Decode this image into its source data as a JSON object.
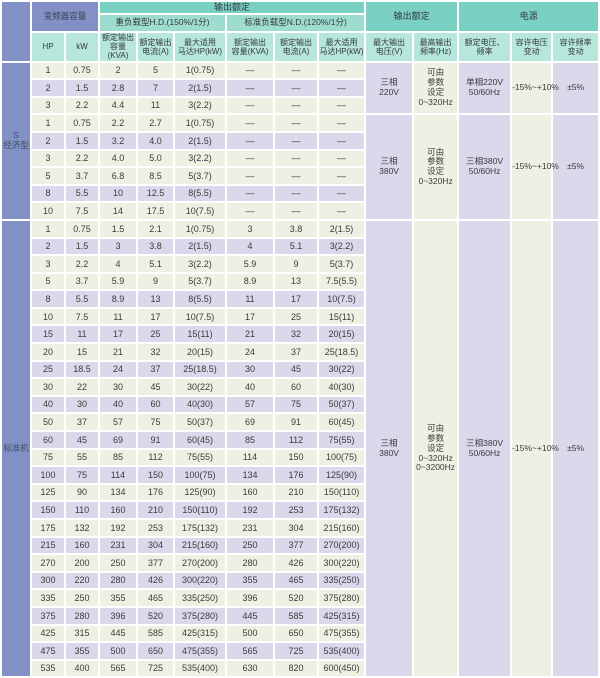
{
  "colors": {
    "header_teal": "#7ad0c2",
    "subheader_teal": "#9edcd0",
    "column_teal": "#b7e6dc",
    "blue": "#8290c6",
    "row_cream": "#f0efe3",
    "row_lavender": "#d9d9eb",
    "text": "#3b3b3b"
  },
  "table": {
    "header": {
      "capacity_group": "变频器容量",
      "output_rating_group": "输出额定",
      "hd_group": "重负载型H.D.(150%/1分)",
      "nd_group": "标准负载型N.D.(120%/1分)",
      "output_rating2_group": "输出额定",
      "power_group": "电源",
      "col_hp": "HP",
      "col_kw": "kW",
      "col_hd_kva": "额定输出\n容量(KVA)",
      "col_hd_a": "额定输出\n电流(A)",
      "col_hd_motor": "最大适用\n马达HP(kW)",
      "col_nd_kva": "额定输出\n容量(KVA)",
      "col_nd_a": "额定输出\n电流(A)",
      "col_nd_motor": "最大适用\n马达HP(kW)",
      "col_max_voltage": "最大输出\n电压(V)",
      "col_max_freq": "最高输出\n频率(Hz)",
      "col_rated_vf": "额定电压、\n频率",
      "col_voltage_tol": "容许电压\n变动",
      "col_freq_tol": "容许频率\n变动"
    },
    "sections": [
      {
        "label": "S\n经济型",
        "groups": [
          {
            "merged": {
              "voltage": "三相\n220V",
              "freq": "可由\n参数\n设定\n0~320Hz",
              "vf": "单相220V\n50/60Hz",
              "vtol": "-15%~+10%",
              "ftol": "±5%"
            },
            "rows": [
              {
                "shade": "c",
                "hp": "1",
                "kw": "0.75",
                "hd_kva": "2",
                "hd_a": "5",
                "hd_hp": "1(0.75)",
                "nd_kva": "—",
                "nd_a": "—",
                "nd_hp": "—"
              },
              {
                "shade": "l",
                "hp": "2",
                "kw": "1.5",
                "hd_kva": "2.8",
                "hd_a": "7",
                "hd_hp": "2(1.5)",
                "nd_kva": "—",
                "nd_a": "—",
                "nd_hp": "—"
              },
              {
                "shade": "c",
                "hp": "3",
                "kw": "2.2",
                "hd_kva": "4.4",
                "hd_a": "11",
                "hd_hp": "3(2.2)",
                "nd_kva": "—",
                "nd_a": "—",
                "nd_hp": "—"
              }
            ]
          },
          {
            "merged": {
              "voltage": "三相\n380V",
              "freq": "可由\n参数\n设定\n0~320Hz",
              "vf": "三相380V\n50/60Hz",
              "vtol": "-15%~+10%",
              "ftol": "±5%"
            },
            "rows": [
              {
                "shade": "c",
                "hp": "1",
                "kw": "0.75",
                "hd_kva": "2.2",
                "hd_a": "2.7",
                "hd_hp": "1(0.75)",
                "nd_kva": "—",
                "nd_a": "—",
                "nd_hp": "—"
              },
              {
                "shade": "l",
                "hp": "2",
                "kw": "1.5",
                "hd_kva": "3.2",
                "hd_a": "4.0",
                "hd_hp": "2(1.5)",
                "nd_kva": "—",
                "nd_a": "—",
                "nd_hp": "—"
              },
              {
                "shade": "c",
                "hp": "3",
                "kw": "2.2",
                "hd_kva": "4.0",
                "hd_a": "5.0",
                "hd_hp": "3(2.2)",
                "nd_kva": "—",
                "nd_a": "—",
                "nd_hp": "—"
              },
              {
                "shade": "c",
                "hp": "5",
                "kw": "3.7",
                "hd_kva": "6.8",
                "hd_a": "8.5",
                "hd_hp": "5(3.7)",
                "nd_kva": "—",
                "nd_a": "—",
                "nd_hp": "—"
              },
              {
                "shade": "l",
                "hp": "8",
                "kw": "5.5",
                "hd_kva": "10",
                "hd_a": "12.5",
                "hd_hp": "8(5.5)",
                "nd_kva": "—",
                "nd_a": "—",
                "nd_hp": "—"
              },
              {
                "shade": "c",
                "hp": "10",
                "kw": "7.5",
                "hd_kva": "14",
                "hd_a": "17.5",
                "hd_hp": "10(7.5)",
                "nd_kva": "—",
                "nd_a": "—",
                "nd_hp": "—"
              }
            ]
          }
        ]
      },
      {
        "label": "标准机",
        "groups": [
          {
            "merged": {
              "voltage": "三相\n380V",
              "freq": "可由\n参数\n设定\n0~320Hz\n0~3200Hz",
              "vf": "三相380V\n50/60Hz",
              "vtol": "-15%~+10%",
              "ftol": "±5%"
            },
            "rows": [
              {
                "shade": "c",
                "hp": "1",
                "kw": "0.75",
                "hd_kva": "1.5",
                "hd_a": "2.1",
                "hd_hp": "1(0.75)",
                "nd_kva": "3",
                "nd_a": "3.8",
                "nd_hp": "2(1.5)"
              },
              {
                "shade": "l",
                "hp": "2",
                "kw": "1.5",
                "hd_kva": "3",
                "hd_a": "3.8",
                "hd_hp": "2(1.5)",
                "nd_kva": "4",
                "nd_a": "5.1",
                "nd_hp": "3(2.2)"
              },
              {
                "shade": "c",
                "hp": "3",
                "kw": "2.2",
                "hd_kva": "4",
                "hd_a": "5.1",
                "hd_hp": "3(2.2)",
                "nd_kva": "5.9",
                "nd_a": "9",
                "nd_hp": "5(3.7)"
              },
              {
                "shade": "c",
                "hp": "5",
                "kw": "3.7",
                "hd_kva": "5.9",
                "hd_a": "9",
                "hd_hp": "5(3.7)",
                "nd_kva": "8.9",
                "nd_a": "13",
                "nd_hp": "7.5(5.5)"
              },
              {
                "shade": "l",
                "hp": "8",
                "kw": "5.5",
                "hd_kva": "8.9",
                "hd_a": "13",
                "hd_hp": "8(5.5)",
                "nd_kva": "11",
                "nd_a": "17",
                "nd_hp": "10(7.5)"
              },
              {
                "shade": "c",
                "hp": "10",
                "kw": "7.5",
                "hd_kva": "11",
                "hd_a": "17",
                "hd_hp": "10(7.5)",
                "nd_kva": "17",
                "nd_a": "25",
                "nd_hp": "15(11)"
              },
              {
                "shade": "l",
                "hp": "15",
                "kw": "11",
                "hd_kva": "17",
                "hd_a": "25",
                "hd_hp": "15(11)",
                "nd_kva": "21",
                "nd_a": "32",
                "nd_hp": "20(15)"
              },
              {
                "shade": "c",
                "hp": "20",
                "kw": "15",
                "hd_kva": "21",
                "hd_a": "32",
                "hd_hp": "20(15)",
                "nd_kva": "24",
                "nd_a": "37",
                "nd_hp": "25(18.5)"
              },
              {
                "shade": "l",
                "hp": "25",
                "kw": "18.5",
                "hd_kva": "24",
                "hd_a": "37",
                "hd_hp": "25(18.5)",
                "nd_kva": "30",
                "nd_a": "45",
                "nd_hp": "30(22)"
              },
              {
                "shade": "c",
                "hp": "30",
                "kw": "22",
                "hd_kva": "30",
                "hd_a": "45",
                "hd_hp": "30(22)",
                "nd_kva": "40",
                "nd_a": "60",
                "nd_hp": "40(30)"
              },
              {
                "shade": "l",
                "hp": "40",
                "kw": "30",
                "hd_kva": "40",
                "hd_a": "60",
                "hd_hp": "40(30)",
                "nd_kva": "57",
                "nd_a": "75",
                "nd_hp": "50(37)"
              },
              {
                "shade": "c",
                "hp": "50",
                "kw": "37",
                "hd_kva": "57",
                "hd_a": "75",
                "hd_hp": "50(37)",
                "nd_kva": "69",
                "nd_a": "91",
                "nd_hp": "60(45)"
              },
              {
                "shade": "l",
                "hp": "60",
                "kw": "45",
                "hd_kva": "69",
                "hd_a": "91",
                "hd_hp": "60(45)",
                "nd_kva": "85",
                "nd_a": "112",
                "nd_hp": "75(55)"
              },
              {
                "shade": "c",
                "hp": "75",
                "kw": "55",
                "hd_kva": "85",
                "hd_a": "112",
                "hd_hp": "75(55)",
                "nd_kva": "114",
                "nd_a": "150",
                "nd_hp": "100(75)"
              },
              {
                "shade": "l",
                "hp": "100",
                "kw": "75",
                "hd_kva": "114",
                "hd_a": "150",
                "hd_hp": "100(75)",
                "nd_kva": "134",
                "nd_a": "176",
                "nd_hp": "125(90)"
              },
              {
                "shade": "c",
                "hp": "125",
                "kw": "90",
                "hd_kva": "134",
                "hd_a": "176",
                "hd_hp": "125(90)",
                "nd_kva": "160",
                "nd_a": "210",
                "nd_hp": "150(110)"
              },
              {
                "shade": "l",
                "hp": "150",
                "kw": "110",
                "hd_kva": "160",
                "hd_a": "210",
                "hd_hp": "150(110)",
                "nd_kva": "192",
                "nd_a": "253",
                "nd_hp": "175(132)"
              },
              {
                "shade": "c",
                "hp": "175",
                "kw": "132",
                "hd_kva": "192",
                "hd_a": "253",
                "hd_hp": "175(132)",
                "nd_kva": "231",
                "nd_a": "304",
                "nd_hp": "215(160)"
              },
              {
                "shade": "l",
                "hp": "215",
                "kw": "160",
                "hd_kva": "231",
                "hd_a": "304",
                "hd_hp": "215(160)",
                "nd_kva": "250",
                "nd_a": "377",
                "nd_hp": "270(200)"
              },
              {
                "shade": "c",
                "hp": "270",
                "kw": "200",
                "hd_kva": "250",
                "hd_a": "377",
                "hd_hp": "270(200)",
                "nd_kva": "280",
                "nd_a": "426",
                "nd_hp": "300(220)"
              },
              {
                "shade": "l",
                "hp": "300",
                "kw": "220",
                "hd_kva": "280",
                "hd_a": "426",
                "hd_hp": "300(220)",
                "nd_kva": "355",
                "nd_a": "465",
                "nd_hp": "335(250)"
              },
              {
                "shade": "c",
                "hp": "335",
                "kw": "250",
                "hd_kva": "355",
                "hd_a": "465",
                "hd_hp": "335(250)",
                "nd_kva": "396",
                "nd_a": "520",
                "nd_hp": "375(280)"
              },
              {
                "shade": "l",
                "hp": "375",
                "kw": "280",
                "hd_kva": "396",
                "hd_a": "520",
                "hd_hp": "375(280)",
                "nd_kva": "445",
                "nd_a": "585",
                "nd_hp": "425(315)"
              },
              {
                "shade": "c",
                "hp": "425",
                "kw": "315",
                "hd_kva": "445",
                "hd_a": "585",
                "hd_hp": "425(315)",
                "nd_kva": "500",
                "nd_a": "650",
                "nd_hp": "475(355)"
              },
              {
                "shade": "l",
                "hp": "475",
                "kw": "355",
                "hd_kva": "500",
                "hd_a": "650",
                "hd_hp": "475(355)",
                "nd_kva": "565",
                "nd_a": "725",
                "nd_hp": "535(400)"
              },
              {
                "shade": "c",
                "hp": "535",
                "kw": "400",
                "hd_kva": "565",
                "hd_a": "725",
                "hd_hp": "535(400)",
                "nd_kva": "630",
                "nd_a": "820",
                "nd_hp": "600(450)"
              }
            ]
          }
        ]
      }
    ]
  }
}
